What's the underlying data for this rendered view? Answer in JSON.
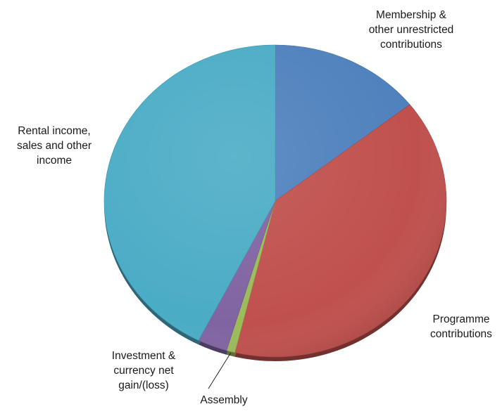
{
  "chart_data": {
    "type": "pie",
    "title": "",
    "start_angle_deg": 0,
    "direction": "clockwise",
    "legend": "none",
    "slices": [
      {
        "label": "Membership & other unrestricted contributions",
        "label_lines": [
          "Membership &",
          "other unrestricted",
          "contributions"
        ],
        "value": 14.4,
        "color": "#4F81BD"
      },
      {
        "label": "Programme contributions",
        "label_lines": [
          "Programme",
          "contributions"
        ],
        "value": 39.4,
        "color": "#C0504D"
      },
      {
        "label": "Assembly",
        "label_lines": [
          "Assembly"
        ],
        "value": 0.8,
        "color": "#9BBB59"
      },
      {
        "label": "Investment & currency net gain/(loss)",
        "label_lines": [
          "Investment &",
          "currency net",
          "gain/(loss)"
        ],
        "value": 2.8,
        "color": "#8064A2"
      },
      {
        "label": "Rental income, sales and other income",
        "label_lines": [
          "Rental income,",
          "sales and other",
          "income"
        ],
        "value": 42.6,
        "color": "#4BACC6"
      }
    ]
  }
}
